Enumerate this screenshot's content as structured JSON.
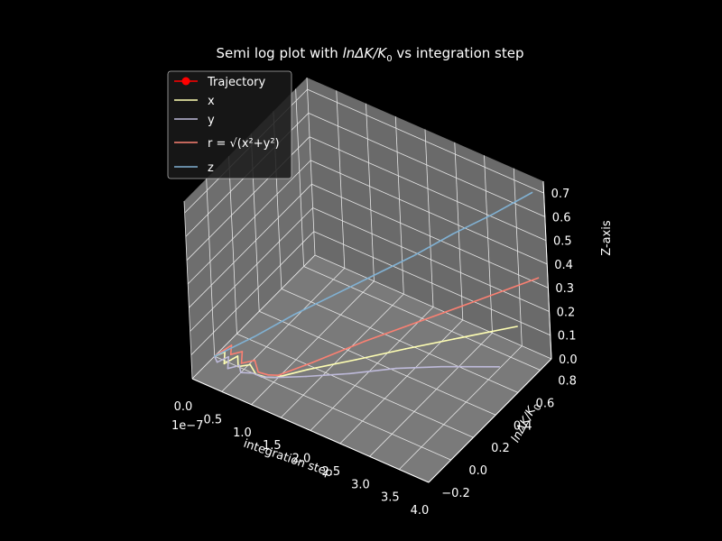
{
  "chart_data": {
    "type": "line",
    "projection": "3d",
    "title_prefix": "Semi log plot with ",
    "title_math": "lnΔK/K",
    "title_sub": "0",
    "title_suffix": " vs integration step",
    "xlabel": "integration step",
    "ylabel_main": "lnΔK/K",
    "ylabel_sub": "0",
    "zlabel": "Z-axis",
    "x_offset_label": "1e−7",
    "x_ticks": [
      "0.0",
      "0.5",
      "1.0",
      "1.5",
      "2.0",
      "2.5",
      "3.0",
      "3.5",
      "4.0"
    ],
    "y_ticks": [
      "−0.2",
      "0.0",
      "0.2",
      "0.4",
      "0.6",
      "0.8"
    ],
    "z_ticks": [
      "0.0",
      "0.1",
      "0.2",
      "0.3",
      "0.4",
      "0.5",
      "0.6",
      "0.7"
    ],
    "xlim": [
      0,
      4.0
    ],
    "ylim": [
      -0.2,
      0.9
    ],
    "zlim": [
      0,
      0.75
    ],
    "grid": true,
    "legend_position": "upper-left",
    "series": [
      {
        "name": "Trajectory",
        "color": "#ff0000",
        "marker": "circle",
        "x": [],
        "y": [],
        "z": []
      },
      {
        "name": "x",
        "color": "#ffffb3",
        "x": [
          0.0,
          0.1,
          0.2,
          0.3,
          0.4,
          0.55,
          0.7,
          0.85,
          1.0,
          1.4,
          2.0,
          2.6,
          3.2,
          4.0
        ],
        "y": [
          0.0,
          0.04,
          -0.02,
          0.05,
          0.0,
          0.03,
          0.0,
          0.01,
          0.02,
          0.1,
          0.22,
          0.35,
          0.47,
          0.62
        ],
        "z": [
          0.0,
          0.01,
          0.0,
          0.01,
          0.0,
          0.01,
          0.0,
          0.0,
          0.01,
          0.05,
          0.1,
          0.15,
          0.2,
          0.27
        ]
      },
      {
        "name": "y",
        "color": "#bebada",
        "x": [
          0.0,
          0.1,
          0.2,
          0.3,
          0.4,
          0.5,
          0.65,
          0.8,
          1.0,
          1.4,
          2.0,
          2.6,
          3.2,
          4.0
        ],
        "y": [
          0.0,
          -0.03,
          0.02,
          -0.04,
          0.01,
          -0.03,
          0.0,
          0.0,
          0.02,
          0.08,
          0.16,
          0.26,
          0.35,
          0.45
        ],
        "z": [
          0.0,
          0.0,
          0.01,
          0.0,
          0.0,
          0.0,
          0.0,
          0.0,
          0.01,
          0.03,
          0.07,
          0.11,
          0.14,
          0.18
        ]
      },
      {
        "name": "r = √(x²+y²)",
        "color": "#fb8072",
        "x": [
          0.0,
          0.1,
          0.2,
          0.3,
          0.4,
          0.55,
          0.7,
          0.85,
          1.0,
          1.4,
          2.0,
          2.6,
          3.2,
          4.0
        ],
        "y": [
          0.0,
          0.1,
          0.04,
          0.09,
          0.03,
          0.07,
          0.02,
          0.03,
          0.04,
          0.14,
          0.3,
          0.46,
          0.62,
          0.82
        ],
        "z": [
          0.0,
          0.01,
          0.01,
          0.01,
          0.0,
          0.01,
          0.0,
          0.0,
          0.01,
          0.06,
          0.14,
          0.21,
          0.28,
          0.38
        ]
      },
      {
        "name": "z",
        "color": "#80b1d3",
        "x": [
          0.0,
          0.5,
          1.0,
          1.5,
          2.0,
          2.5,
          3.0,
          3.5,
          4.0
        ],
        "y": [
          0.0,
          0.1,
          0.2,
          0.3,
          0.4,
          0.5,
          0.6,
          0.7,
          0.8
        ],
        "z": [
          0.0,
          0.09,
          0.19,
          0.28,
          0.37,
          0.46,
          0.56,
          0.65,
          0.75
        ]
      }
    ]
  }
}
